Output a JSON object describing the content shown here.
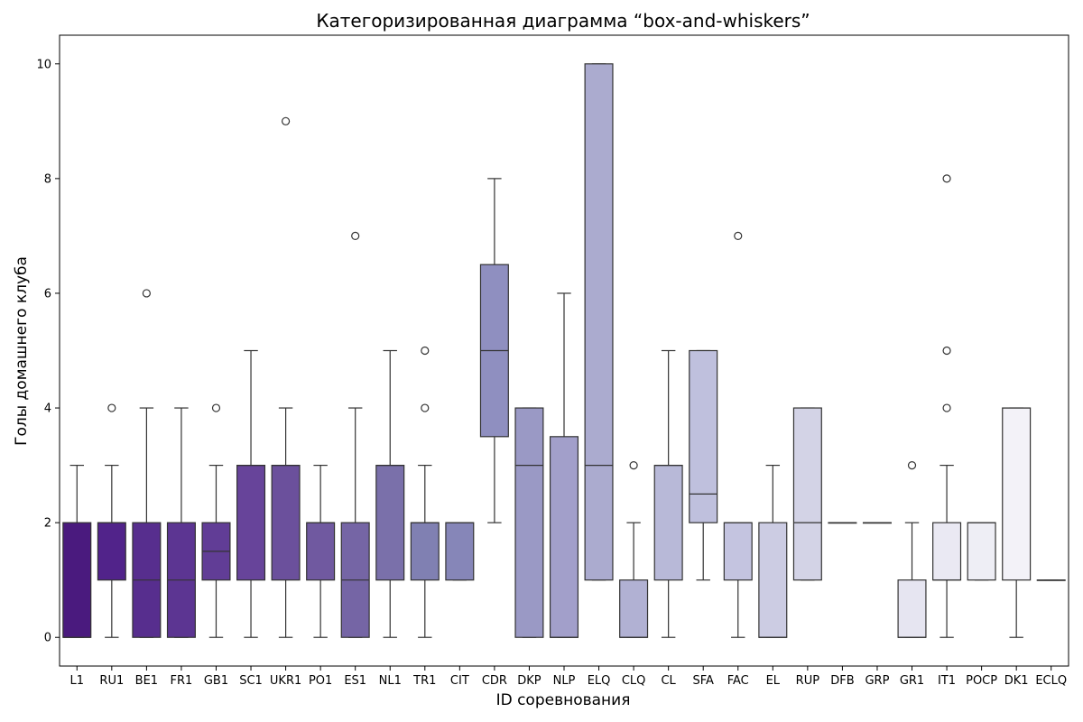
{
  "chart_data": {
    "type": "box",
    "title": "Категоризированная диаграмма “box-and-whiskers”",
    "xlabel": "ID соревнования",
    "ylabel": "Голы домашнего клуба",
    "ylim": [
      -0.5,
      10.5
    ],
    "yticks": [
      0,
      2,
      4,
      6,
      8,
      10
    ],
    "grid": false,
    "palette": "purples",
    "categories": [
      "L1",
      "RU1",
      "BE1",
      "FR1",
      "GB1",
      "SC1",
      "UKR1",
      "PO1",
      "ES1",
      "NL1",
      "TR1",
      "CIT",
      "CDR",
      "DKP",
      "NLP",
      "ELQ",
      "CLQ",
      "CL",
      "SFA",
      "FAC",
      "EL",
      "RUP",
      "DFB",
      "GRP",
      "GR1",
      "IT1",
      "POCP",
      "DK1",
      "ECLQ"
    ],
    "boxes": [
      {
        "category": "L1",
        "whislo": 0,
        "q1": 0,
        "median": 0,
        "q3": 2,
        "whishi": 3,
        "fliers": []
      },
      {
        "category": "RU1",
        "whislo": 0,
        "q1": 1,
        "median": 2,
        "q3": 2,
        "whishi": 3,
        "fliers": [
          4
        ]
      },
      {
        "category": "BE1",
        "whislo": 0,
        "q1": 0,
        "median": 1,
        "q3": 2,
        "whishi": 4,
        "fliers": [
          6
        ]
      },
      {
        "category": "FR1",
        "whislo": 0,
        "q1": 0,
        "median": 1,
        "q3": 2,
        "whishi": 4,
        "fliers": []
      },
      {
        "category": "GB1",
        "whislo": 0,
        "q1": 1,
        "median": 1.5,
        "q3": 2,
        "whishi": 3,
        "fliers": [
          4
        ]
      },
      {
        "category": "SC1",
        "whislo": 0,
        "q1": 1,
        "median": 3,
        "q3": 3,
        "whishi": 5,
        "fliers": []
      },
      {
        "category": "UKR1",
        "whislo": 0,
        "q1": 1,
        "median": 3,
        "q3": 3,
        "whishi": 4,
        "fliers": [
          9
        ]
      },
      {
        "category": "PO1",
        "whislo": 0,
        "q1": 1,
        "median": 2,
        "q3": 2,
        "whishi": 3,
        "fliers": []
      },
      {
        "category": "ES1",
        "whislo": 0,
        "q1": 0,
        "median": 1,
        "q3": 2,
        "whishi": 4,
        "fliers": [
          7
        ]
      },
      {
        "category": "NL1",
        "whislo": 0,
        "q1": 1,
        "median": 3,
        "q3": 3,
        "whishi": 5,
        "fliers": []
      },
      {
        "category": "TR1",
        "whislo": 0,
        "q1": 1,
        "median": 2,
        "q3": 2,
        "whishi": 3,
        "fliers": [
          4,
          5
        ]
      },
      {
        "category": "CIT",
        "whislo": 1,
        "q1": 1,
        "median": 2,
        "q3": 2,
        "whishi": 2,
        "fliers": []
      },
      {
        "category": "CDR",
        "whislo": 2,
        "q1": 3.5,
        "median": 5,
        "q3": 6.5,
        "whishi": 8,
        "fliers": []
      },
      {
        "category": "DKP",
        "whislo": 0,
        "q1": 0,
        "median": 3,
        "q3": 4,
        "whishi": 4,
        "fliers": []
      },
      {
        "category": "NLP",
        "whislo": 0,
        "q1": 0,
        "median": 0,
        "q3": 3.5,
        "whishi": 6,
        "fliers": []
      },
      {
        "category": "ELQ",
        "whislo": 1,
        "q1": 1,
        "median": 3,
        "q3": 10,
        "whishi": 10,
        "fliers": []
      },
      {
        "category": "CLQ",
        "whislo": 0,
        "q1": 0,
        "median": 0,
        "q3": 1,
        "whishi": 2,
        "fliers": [
          3
        ]
      },
      {
        "category": "CL",
        "whislo": 0,
        "q1": 1,
        "median": 3,
        "q3": 3,
        "whishi": 5,
        "fliers": []
      },
      {
        "category": "SFA",
        "whislo": 1,
        "q1": 2,
        "median": 2.5,
        "q3": 5,
        "whishi": 5,
        "fliers": []
      },
      {
        "category": "FAC",
        "whislo": 0,
        "q1": 1,
        "median": 2,
        "q3": 2,
        "whishi": 2,
        "fliers": [
          7
        ]
      },
      {
        "category": "EL",
        "whislo": 0,
        "q1": 0,
        "median": 0,
        "q3": 2,
        "whishi": 3,
        "fliers": []
      },
      {
        "category": "RUP",
        "whislo": 1,
        "q1": 1,
        "median": 2,
        "q3": 4,
        "whishi": 4,
        "fliers": []
      },
      {
        "category": "DFB",
        "whislo": 2,
        "q1": 2,
        "median": 2,
        "q3": 2,
        "whishi": 2,
        "fliers": []
      },
      {
        "category": "GRP",
        "whislo": 2,
        "q1": 2,
        "median": 2,
        "q3": 2,
        "whishi": 2,
        "fliers": []
      },
      {
        "category": "GR1",
        "whislo": 0,
        "q1": 0,
        "median": 0,
        "q3": 1,
        "whishi": 2,
        "fliers": [
          3
        ]
      },
      {
        "category": "IT1",
        "whislo": 0,
        "q1": 1,
        "median": 1,
        "q3": 2,
        "whishi": 3,
        "fliers": [
          4,
          5,
          8
        ]
      },
      {
        "category": "POCP",
        "whislo": 1,
        "q1": 1,
        "median": 2,
        "q3": 2,
        "whishi": 2,
        "fliers": []
      },
      {
        "category": "DK1",
        "whislo": 0,
        "q1": 1,
        "median": 4,
        "q3": 4,
        "whishi": 4,
        "fliers": []
      },
      {
        "category": "ECLQ",
        "whislo": 1,
        "q1": 1,
        "median": 1,
        "q3": 1,
        "whishi": 1,
        "fliers": []
      }
    ],
    "colors": [
      "#4a1a7e",
      "#51238a",
      "#572e8e",
      "#5c3592",
      "#613d96",
      "#67449a",
      "#6b509c",
      "#7059a0",
      "#7565a5",
      "#7a70aa",
      "#8080b2",
      "#8686b8",
      "#8f8fc0",
      "#9a99c5",
      "#a29fca",
      "#ababcf",
      "#b1b1d3",
      "#b8b9d8",
      "#bfc0dd",
      "#c4c4e0",
      "#cccce3",
      "#d3d3e6",
      "#d9d8ea",
      "#dfdfee",
      "#e6e5f1",
      "#eae9f3",
      "#eeeef5",
      "#f3f2f8",
      "#f8f7fb"
    ]
  }
}
